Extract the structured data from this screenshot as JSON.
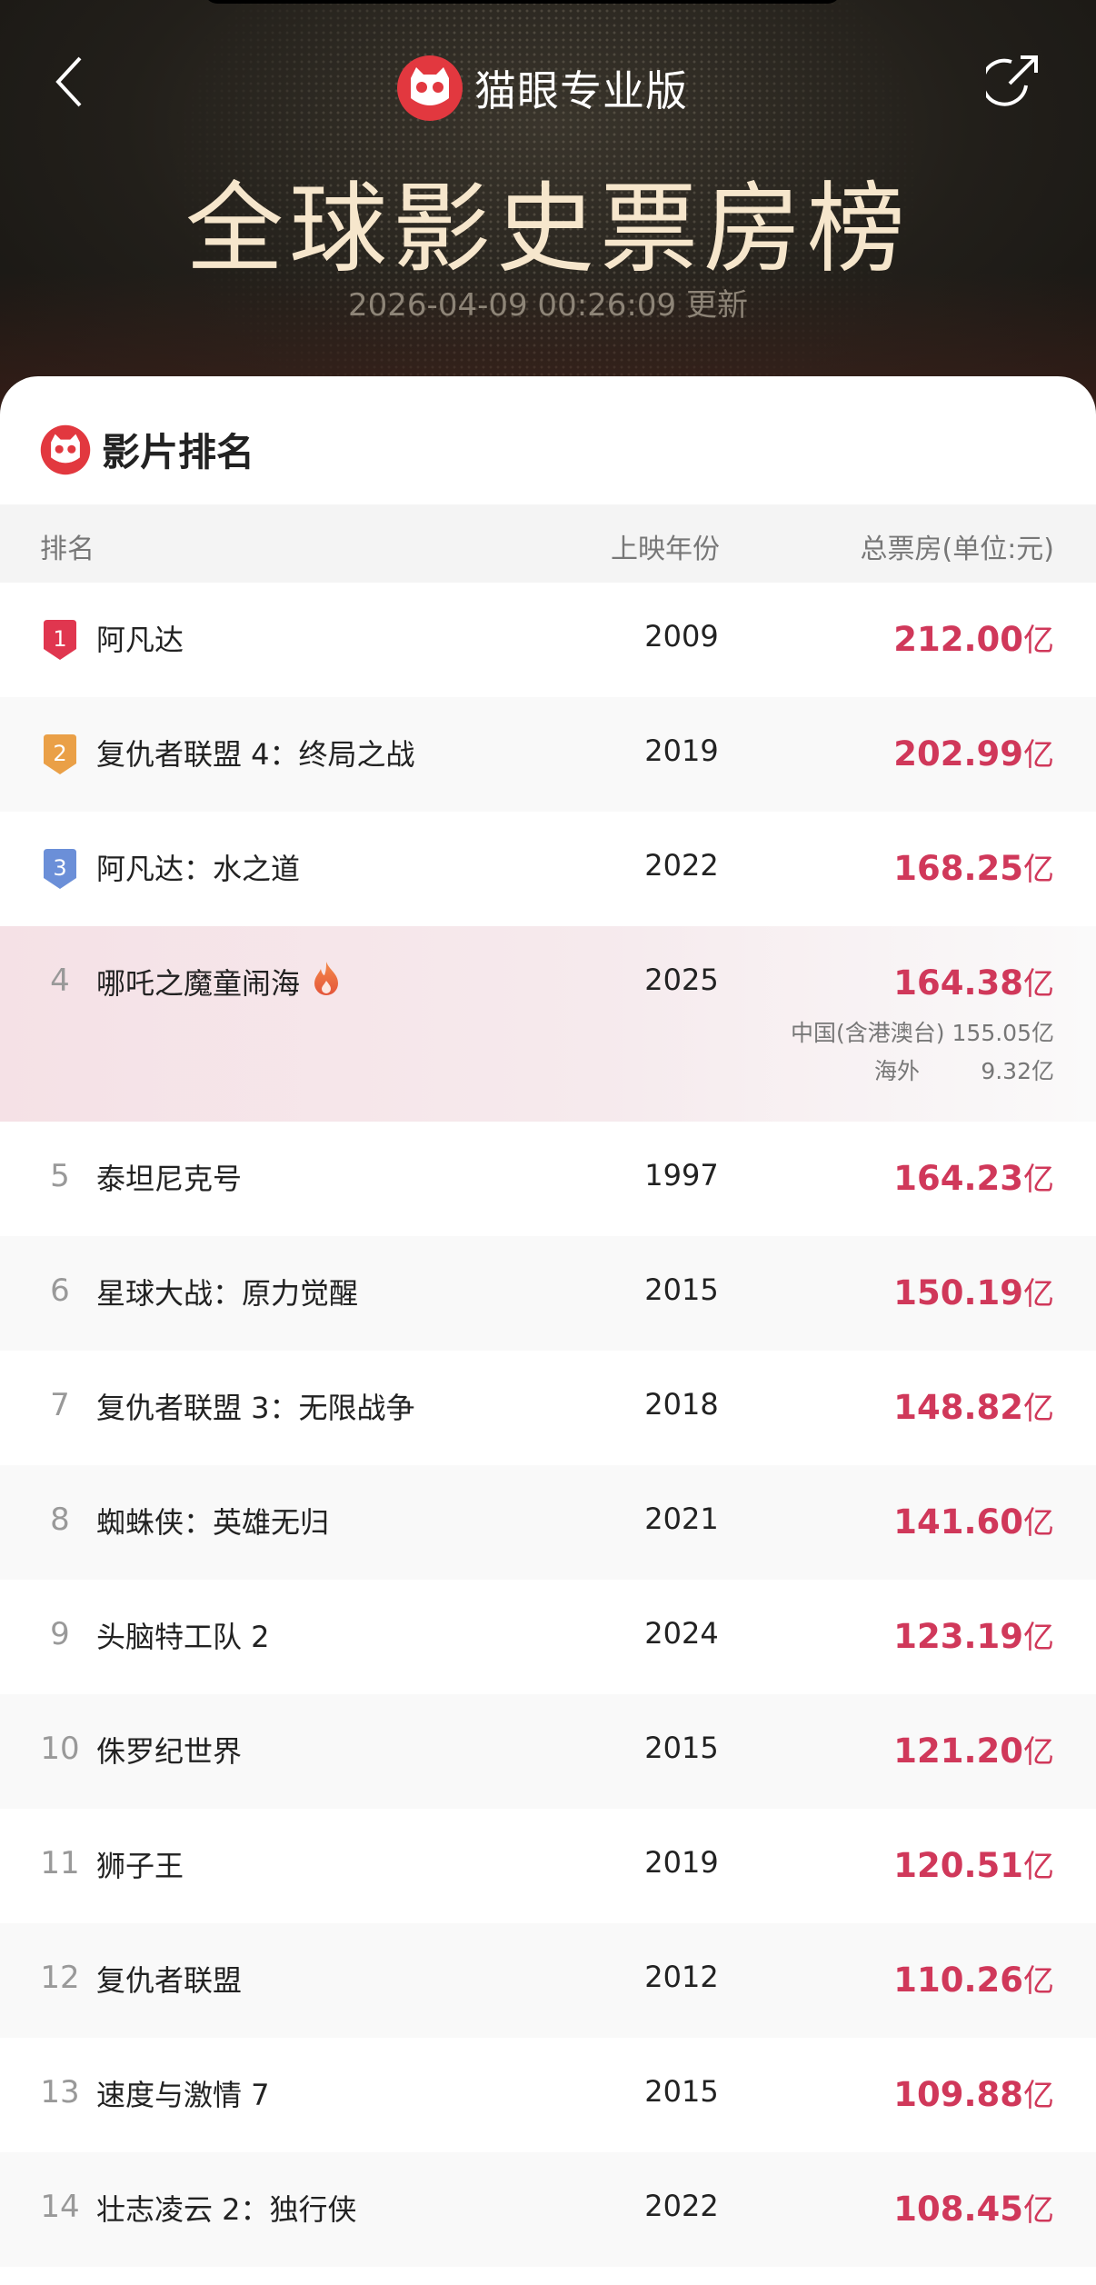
{
  "header": {
    "brand": "猫眼专业版",
    "title": "全球影史票房榜",
    "updated": "2026-04-09 00:26:09 更新"
  },
  "section": {
    "title": "影片排名"
  },
  "columns": {
    "rank": "排名",
    "year": "上映年份",
    "box": "总票房(单位:元)"
  },
  "badge_colors": {
    "1": "#e0364f",
    "2": "#eaa047",
    "3": "#6b8fd8"
  },
  "accent": "#d0385a",
  "unit": "亿",
  "movies": [
    {
      "rank": "1",
      "name": "阿凡达",
      "year": "2009",
      "box": "212.00"
    },
    {
      "rank": "2",
      "name": "复仇者联盟 4：终局之战",
      "year": "2019",
      "box": "202.99"
    },
    {
      "rank": "3",
      "name": "阿凡达：水之道",
      "year": "2022",
      "box": "168.25"
    },
    {
      "rank": "4",
      "name": "哪吒之魔童闹海",
      "year": "2025",
      "box": "164.38",
      "hot": true,
      "breakdown": [
        {
          "label": "中国(含港澳台)",
          "value": "155.05亿"
        },
        {
          "label": "海外",
          "value": "9.32亿"
        }
      ]
    },
    {
      "rank": "5",
      "name": "泰坦尼克号",
      "year": "1997",
      "box": "164.23"
    },
    {
      "rank": "6",
      "name": "星球大战：原力觉醒",
      "year": "2015",
      "box": "150.19"
    },
    {
      "rank": "7",
      "name": "复仇者联盟 3：无限战争",
      "year": "2018",
      "box": "148.82"
    },
    {
      "rank": "8",
      "name": "蜘蛛侠：英雄无归",
      "year": "2021",
      "box": "141.60"
    },
    {
      "rank": "9",
      "name": "头脑特工队 2",
      "year": "2024",
      "box": "123.19"
    },
    {
      "rank": "10",
      "name": "侏罗纪世界",
      "year": "2015",
      "box": "121.20"
    },
    {
      "rank": "11",
      "name": "狮子王",
      "year": "2019",
      "box": "120.51"
    },
    {
      "rank": "12",
      "name": "复仇者联盟",
      "year": "2012",
      "box": "110.26"
    },
    {
      "rank": "13",
      "name": "速度与激情 7",
      "year": "2015",
      "box": "109.88"
    },
    {
      "rank": "14",
      "name": "壮志凌云 2：独行侠",
      "year": "2022",
      "box": "108.45"
    }
  ]
}
